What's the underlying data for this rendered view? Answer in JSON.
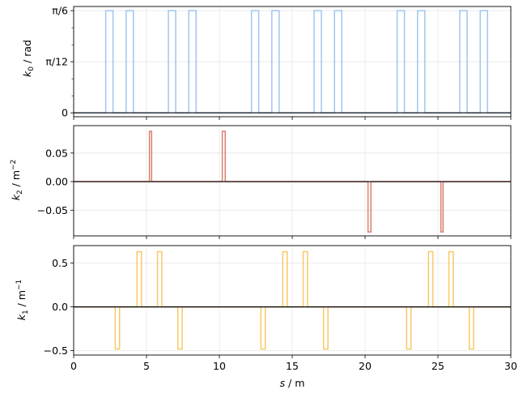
{
  "chart_data": [
    {
      "type": "line",
      "panel": "top",
      "ylabel": "k0 / rad",
      "xlim": [
        0,
        30
      ],
      "ylim": [
        -0.02,
        0.545
      ],
      "yticks": [
        {
          "value": 0,
          "label": "0"
        },
        {
          "value": 0.2618,
          "label": "π/12"
        },
        {
          "value": 0.5236,
          "label": "π/6"
        }
      ],
      "grid": true,
      "series": [
        {
          "color": "#9fc6ef",
          "level": 0.5236,
          "pulses": [
            [
              2.2,
              2.7
            ],
            [
              3.6,
              4.1
            ],
            [
              6.5,
              7.0
            ],
            [
              7.9,
              8.4
            ],
            [
              12.2,
              12.7
            ],
            [
              13.6,
              14.1
            ],
            [
              16.5,
              17.0
            ],
            [
              17.9,
              18.4
            ],
            [
              22.2,
              22.7
            ],
            [
              23.6,
              24.1
            ],
            [
              26.5,
              27.0
            ],
            [
              27.9,
              28.4
            ]
          ]
        }
      ],
      "baseline": {
        "color": "#000000",
        "value": 0
      }
    },
    {
      "type": "line",
      "panel": "middle",
      "ylabel": "k2 / m⁻²",
      "xlim": [
        0,
        30
      ],
      "ylim": [
        -0.095,
        0.098
      ],
      "yticks": [
        {
          "value": 0.05,
          "label": "0.05"
        },
        {
          "value": 0.0,
          "label": "0.00"
        },
        {
          "value": -0.05,
          "label": "−0.05"
        }
      ],
      "grid": true,
      "series": [
        {
          "color": "#d97f6e",
          "pulses": [
            [
              5.2,
              5.35,
              0.088
            ],
            [
              10.2,
              10.4,
              0.088
            ],
            [
              20.2,
              20.4,
              -0.088
            ],
            [
              25.2,
              25.35,
              -0.088
            ]
          ]
        }
      ],
      "baseline": {
        "color": "#000000",
        "value": 0
      }
    },
    {
      "type": "line",
      "panel": "bottom",
      "ylabel": "k1 / m⁻¹",
      "xlabel": "s / m",
      "xlim": [
        0,
        30
      ],
      "ylim": [
        -0.55,
        0.7
      ],
      "yticks": [
        {
          "value": 0.5,
          "label": "0.5"
        },
        {
          "value": 0.0,
          "label": "0.0"
        },
        {
          "value": -0.5,
          "label": "−0.5"
        }
      ],
      "xticks": [
        {
          "value": 0,
          "label": "0"
        },
        {
          "value": 5,
          "label": "5"
        },
        {
          "value": 10,
          "label": "10"
        },
        {
          "value": 15,
          "label": "15"
        },
        {
          "value": 20,
          "label": "20"
        },
        {
          "value": 25,
          "label": "25"
        },
        {
          "value": 30,
          "label": "30"
        }
      ],
      "grid": true,
      "series": [
        {
          "color": "#f8c867",
          "pulses": [
            [
              2.85,
              3.15,
              -0.48
            ],
            [
              4.35,
              4.65,
              0.63
            ],
            [
              5.75,
              6.05,
              0.63
            ],
            [
              7.15,
              7.45,
              -0.48
            ],
            [
              12.85,
              13.15,
              -0.48
            ],
            [
              14.35,
              14.65,
              0.63
            ],
            [
              15.75,
              16.05,
              0.63
            ],
            [
              17.15,
              17.45,
              -0.48
            ],
            [
              22.85,
              23.15,
              -0.48
            ],
            [
              24.35,
              24.65,
              0.63
            ],
            [
              25.75,
              26.05,
              0.63
            ],
            [
              27.15,
              27.45,
              -0.48
            ]
          ]
        }
      ],
      "baseline": {
        "color": "#000000",
        "value": 0
      }
    }
  ]
}
